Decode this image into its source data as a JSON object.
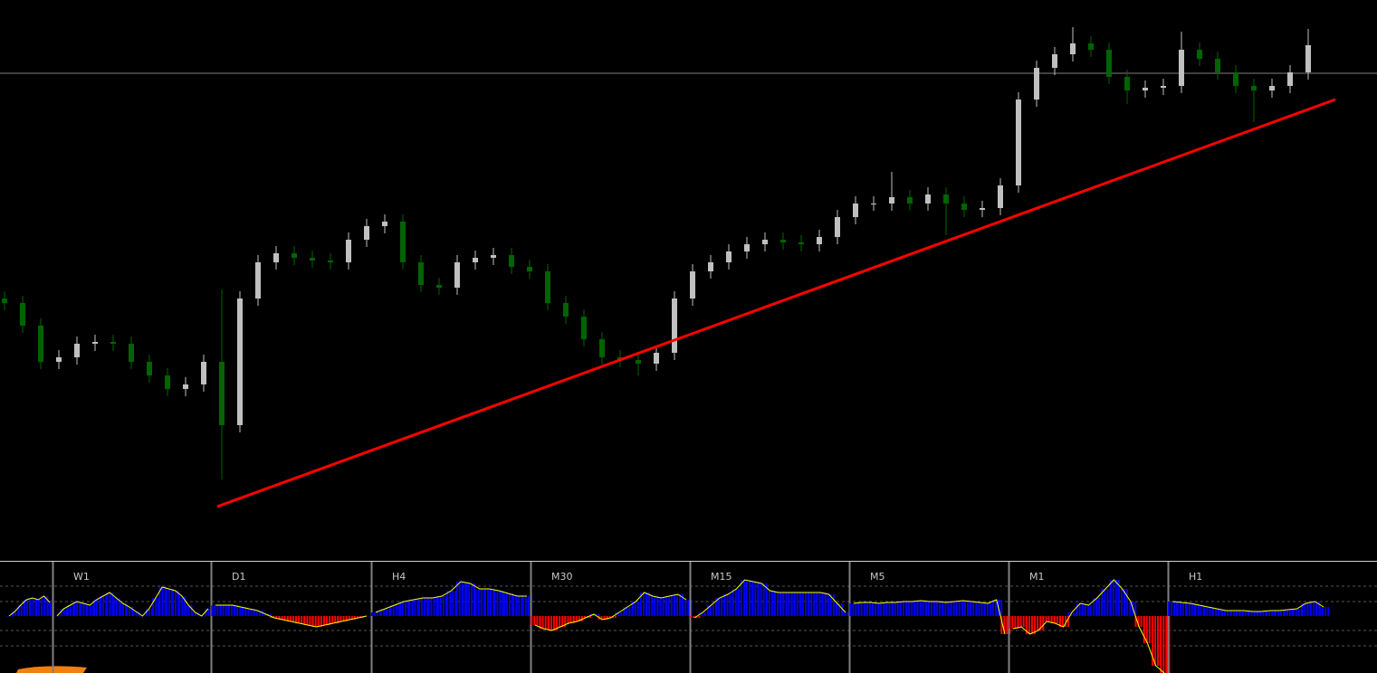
{
  "price_chart": {
    "type": "candlestick",
    "ylim": [
      0,
      620
    ],
    "up_color": "#c0c0c0",
    "down_color": "#006400",
    "candles": [
      [
        290,
        298,
        277,
        285
      ],
      [
        285,
        293,
        252,
        260
      ],
      [
        260,
        268,
        212,
        220
      ],
      [
        220,
        233,
        212,
        225
      ],
      [
        225,
        248,
        217,
        240
      ],
      [
        240,
        250,
        232,
        242
      ],
      [
        242,
        250,
        232,
        240
      ],
      [
        240,
        248,
        212,
        220
      ],
      [
        220,
        228,
        197,
        205
      ],
      [
        205,
        213,
        182,
        190
      ],
      [
        190,
        203,
        182,
        195
      ],
      [
        195,
        228,
        187,
        220
      ],
      [
        220,
        300,
        90,
        150
      ],
      [
        150,
        298,
        142,
        290
      ],
      [
        290,
        338,
        282,
        330
      ],
      [
        330,
        348,
        322,
        340
      ],
      [
        340,
        348,
        327,
        335
      ],
      [
        335,
        343,
        324,
        332
      ],
      [
        332,
        340,
        322,
        330
      ],
      [
        330,
        363,
        322,
        355
      ],
      [
        355,
        378,
        347,
        370
      ],
      [
        370,
        383,
        362,
        375
      ],
      [
        375,
        383,
        322,
        330
      ],
      [
        330,
        338,
        297,
        305
      ],
      [
        305,
        313,
        294,
        302
      ],
      [
        302,
        338,
        294,
        330
      ],
      [
        330,
        343,
        322,
        335
      ],
      [
        335,
        346,
        327,
        338
      ],
      [
        338,
        346,
        317,
        325
      ],
      [
        325,
        333,
        312,
        320
      ],
      [
        320,
        328,
        277,
        285
      ],
      [
        285,
        293,
        262,
        270
      ],
      [
        270,
        278,
        237,
        245
      ],
      [
        245,
        253,
        217,
        225
      ],
      [
        225,
        233,
        214,
        222
      ],
      [
        222,
        230,
        205,
        218
      ],
      [
        218,
        238,
        210,
        230
      ],
      [
        230,
        298,
        222,
        290
      ],
      [
        290,
        328,
        282,
        320
      ],
      [
        320,
        338,
        312,
        330
      ],
      [
        330,
        350,
        322,
        342
      ],
      [
        342,
        358,
        334,
        350
      ],
      [
        350,
        363,
        342,
        355
      ],
      [
        355,
        363,
        344,
        352
      ],
      [
        352,
        360,
        342,
        350
      ],
      [
        350,
        366,
        342,
        358
      ],
      [
        358,
        388,
        350,
        380
      ],
      [
        380,
        403,
        372,
        395
      ],
      [
        395,
        403,
        387,
        395
      ],
      [
        395,
        430,
        387,
        402
      ],
      [
        402,
        410,
        387,
        395
      ],
      [
        395,
        413,
        387,
        405
      ],
      [
        405,
        413,
        360,
        395
      ],
      [
        395,
        403,
        380,
        388
      ],
      [
        388,
        398,
        380,
        390
      ],
      [
        390,
        423,
        382,
        415
      ],
      [
        415,
        518,
        407,
        510
      ],
      [
        510,
        553,
        502,
        545
      ],
      [
        545,
        568,
        537,
        560
      ],
      [
        560,
        590,
        552,
        572
      ],
      [
        572,
        580,
        557,
        565
      ],
      [
        565,
        573,
        527,
        535
      ],
      [
        535,
        543,
        505,
        520
      ],
      [
        520,
        531,
        512,
        523
      ],
      [
        523,
        533,
        515,
        525
      ],
      [
        525,
        585,
        517,
        565
      ],
      [
        565,
        573,
        547,
        555
      ],
      [
        555,
        563,
        532,
        540
      ],
      [
        540,
        548,
        517,
        525
      ],
      [
        525,
        533,
        485,
        520
      ],
      [
        520,
        533,
        512,
        525
      ],
      [
        525,
        548,
        517,
        540
      ],
      [
        540,
        588,
        532,
        570
      ]
    ],
    "bid_line": 539,
    "bid_color": "#7f7f7f",
    "trendline": {
      "from": [
        11.75,
        60
      ],
      "to": [
        73.5,
        510
      ],
      "color": "#ff0000"
    }
  },
  "indicator": {
    "type": "histogram",
    "ylim": [
      -63,
      61
    ],
    "levels": [
      -33,
      -16,
      16,
      33
    ],
    "up_color": "#0000ff",
    "down_color": "#ff0000",
    "line_color": "#ffff00",
    "panels": [
      {
        "values": [
          0,
          5,
          12,
          18,
          20,
          18,
          22,
          15
        ]
      },
      {
        "label": "W1",
        "values": [
          0,
          8,
          12,
          16,
          14,
          12,
          18,
          22,
          26,
          20,
          14,
          10,
          5,
          0,
          8,
          20,
          32,
          30,
          28,
          22,
          12,
          4,
          0,
          8
        ]
      },
      {
        "label": "D1",
        "values": [
          12,
          12,
          12,
          10,
          8,
          6,
          2,
          -2,
          -4,
          -6,
          -8,
          -10,
          -12,
          -10,
          -8,
          -6,
          -4,
          -2,
          0
        ]
      },
      {
        "label": "H4",
        "values": [
          4,
          8,
          12,
          16,
          18,
          20,
          20,
          22,
          28,
          38,
          36,
          30,
          30,
          28,
          25,
          22,
          22
        ]
      },
      {
        "label": "M30",
        "values": [
          -10,
          -14,
          -16,
          -12,
          -8,
          -6,
          -2,
          2,
          -4,
          -2,
          4,
          10,
          16,
          26,
          22,
          20,
          22,
          24,
          18
        ]
      },
      {
        "label": "M15",
        "values": [
          -2,
          4,
          12,
          20,
          24,
          30,
          40,
          38,
          36,
          28,
          26,
          26,
          26,
          26,
          26,
          26,
          24,
          14,
          4
        ]
      },
      {
        "label": "M5",
        "values": [
          14,
          15,
          15,
          14,
          15,
          15,
          16,
          16,
          17,
          16,
          16,
          15,
          16,
          17,
          16,
          15,
          14,
          18,
          -20
        ]
      },
      {
        "label": "M1",
        "values": [
          -14,
          -12,
          -20,
          -16,
          -6,
          -8,
          -12,
          4,
          14,
          12,
          20,
          30,
          40,
          30,
          16,
          -12,
          -30,
          -55,
          -63
        ]
      },
      {
        "label": "H1",
        "values": [
          16,
          15,
          14,
          12,
          10,
          8,
          6,
          6,
          6,
          5,
          5,
          6,
          6,
          7,
          8,
          14,
          16,
          10
        ]
      }
    ]
  }
}
